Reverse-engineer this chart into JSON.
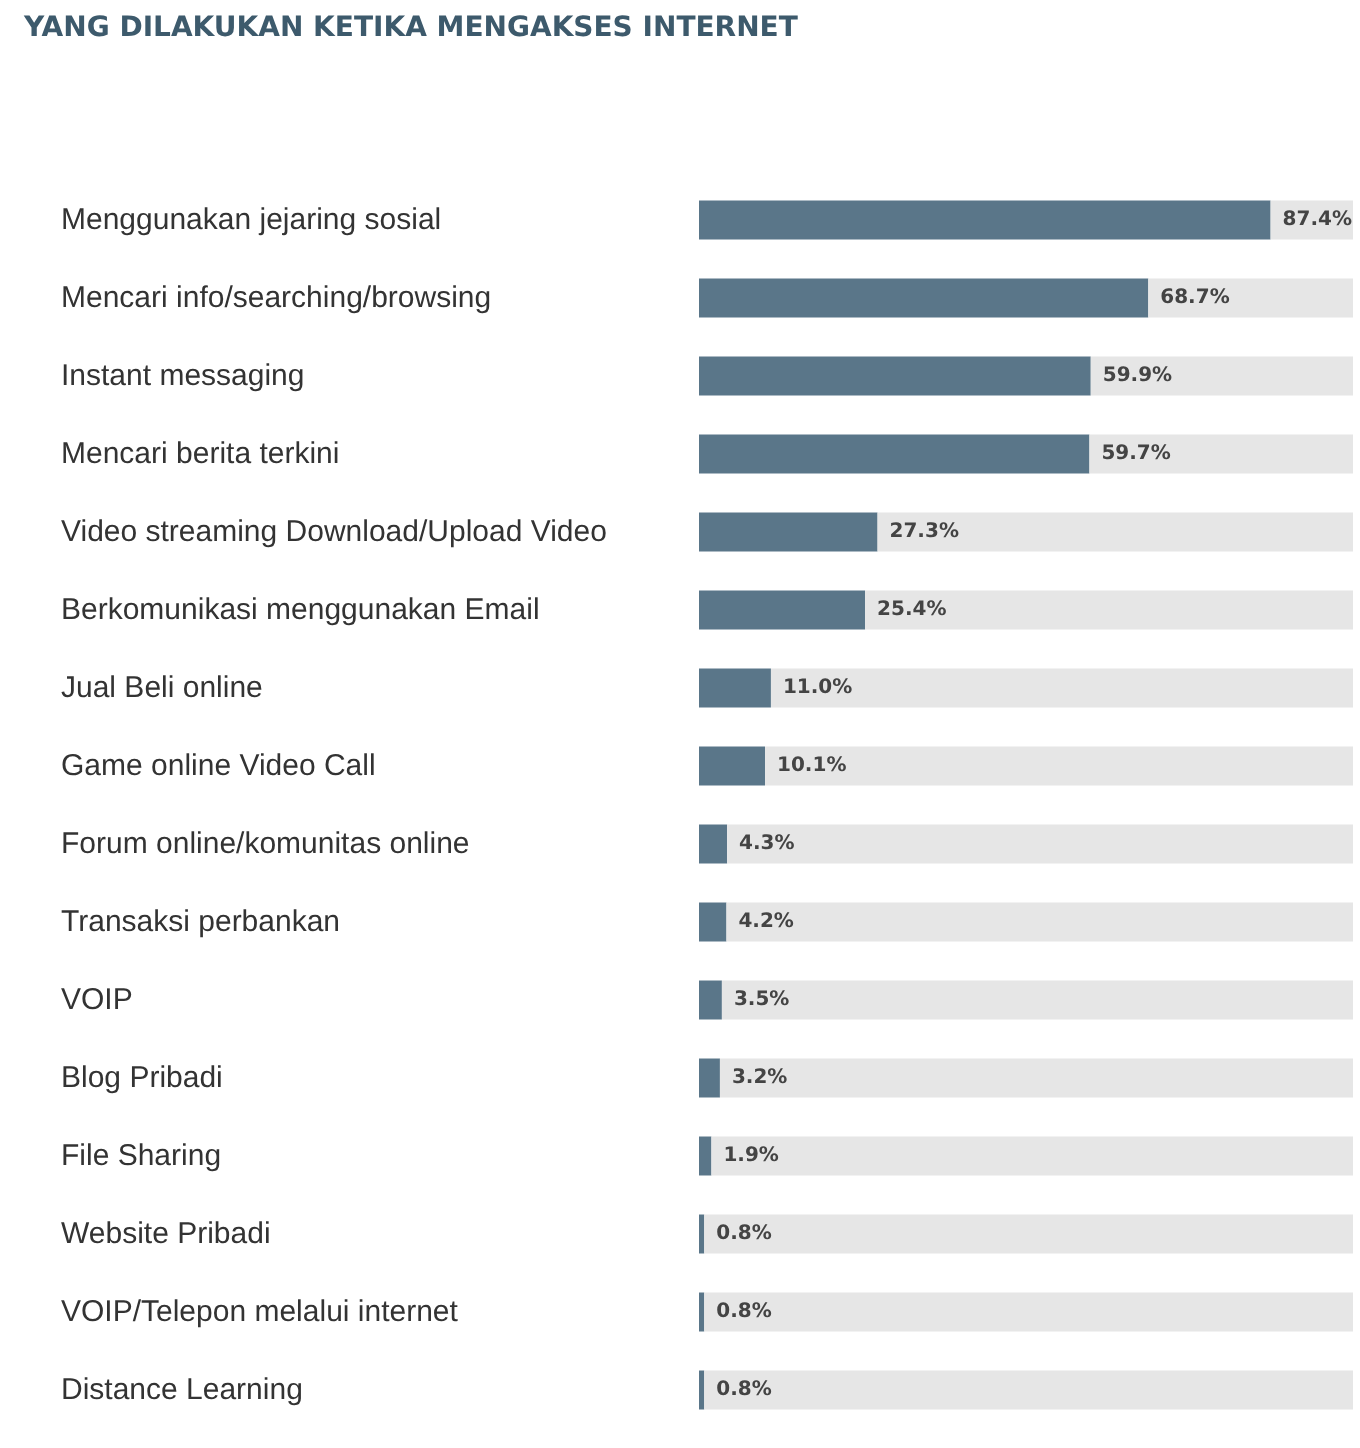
{
  "chart_data": {
    "type": "bar",
    "orientation": "horizontal",
    "stacked": true,
    "title": "YANG DILAKUKAN KETIKA MENGAKSES INTERNET",
    "categories": [
      "Menggunakan jejaring sosial",
      "Mencari info/searching/browsing",
      "Instant messaging",
      "Mencari berita terkini",
      "Video streaming Download/Upload Video",
      "Berkomunikasi menggunakan Email",
      "Jual Beli online",
      "Game online Video Call",
      "Forum online/komunitas online",
      "Transaksi perbankan",
      "VOIP",
      "Blog Pribadi",
      "File Sharing",
      "Website Pribadi",
      "VOIP/Telepon melalui internet",
      "Distance Learning"
    ],
    "series": [
      {
        "color": "#5a7689",
        "values": [
          87.4,
          68.7,
          59.9,
          59.7,
          27.3,
          25.4,
          11.0,
          10.1,
          4.3,
          4.2,
          3.5,
          3.2,
          1.9,
          0.8,
          0.8,
          0.8
        ],
        "value_labels": [
          "87.4%",
          "68.7%",
          "59.9%",
          "59.7%",
          "27.3%",
          "25.4%",
          "11.0%",
          "10.1%",
          "4.3%",
          "4.2%",
          "3.5%",
          "3.2%",
          "1.9%",
          "0.8%",
          "0.8%",
          "0.8%"
        ]
      },
      {
        "color": "#e6e6e6",
        "values": [
          12.6,
          31.3,
          40.1,
          40.3,
          72.7,
          74.6,
          89.0,
          89.9,
          95.7,
          95.8,
          96.5,
          96.8,
          98.1,
          99.2,
          99.2,
          99.2
        ]
      }
    ],
    "grid": false
  }
}
